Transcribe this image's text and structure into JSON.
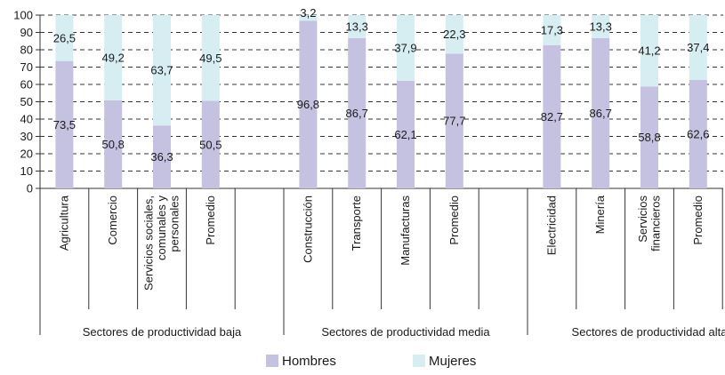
{
  "chart_data": {
    "type": "bar",
    "stacked": true,
    "ylim": [
      0,
      100
    ],
    "yticks": [
      0,
      10,
      20,
      30,
      40,
      50,
      60,
      70,
      80,
      90,
      100
    ],
    "grid": "horizontal-dashed",
    "legend_position": "bottom",
    "colors": {
      "Hombres": "#c5c1e0",
      "Mujeres": "#d6eef2"
    },
    "groups": [
      {
        "label": "Sectores de productividad baja",
        "categories": [
          {
            "label": "Agricultura",
            "lines": [
              "Agricultura"
            ],
            "hombres": 73.5,
            "mujeres": 26.5,
            "hombres_label": "73,5",
            "mujeres_label": "26,5"
          },
          {
            "label": "Comercio",
            "lines": [
              "Comercio"
            ],
            "hombres": 50.8,
            "mujeres": 49.2,
            "hombres_label": "50,8",
            "mujeres_label": "49,2"
          },
          {
            "label": "Servicios sociales, comunales y personales",
            "lines": [
              "Servicios sociales,",
              "comunales y",
              "personales"
            ],
            "hombres": 36.3,
            "mujeres": 63.7,
            "hombres_label": "36,3",
            "mujeres_label": "63,7"
          },
          {
            "label": "Promedio",
            "lines": [
              "Promedio"
            ],
            "hombres": 50.5,
            "mujeres": 49.5,
            "hombres_label": "50,5",
            "mujeres_label": "49,5"
          }
        ]
      },
      {
        "label": "Sectores de productividad media",
        "categories": [
          {
            "label": "Construcción",
            "lines": [
              "Construcción"
            ],
            "hombres": 96.8,
            "mujeres": 3.2,
            "hombres_label": "96,8",
            "mujeres_label": "3,2"
          },
          {
            "label": "Transporte",
            "lines": [
              "Transporte"
            ],
            "hombres": 86.7,
            "mujeres": 13.3,
            "hombres_label": "86,7",
            "mujeres_label": "13,3"
          },
          {
            "label": "Manufacturas",
            "lines": [
              "Manufacturas"
            ],
            "hombres": 62.1,
            "mujeres": 37.9,
            "hombres_label": "62,1",
            "mujeres_label": "37,9"
          },
          {
            "label": "Promedio",
            "lines": [
              "Promedio"
            ],
            "hombres": 77.7,
            "mujeres": 22.3,
            "hombres_label": "77,7",
            "mujeres_label": "22,3"
          }
        ]
      },
      {
        "label": "Sectores de productividad alta",
        "categories": [
          {
            "label": "Electricidad",
            "lines": [
              "Electricidad"
            ],
            "hombres": 82.7,
            "mujeres": 17.3,
            "hombres_label": "82,7",
            "mujeres_label": "17,3"
          },
          {
            "label": "Minería",
            "lines": [
              "Minería"
            ],
            "hombres": 86.7,
            "mujeres": 13.3,
            "hombres_label": "86,7",
            "mujeres_label": "13,3"
          },
          {
            "label": "Servicios financieros",
            "lines": [
              "Servicios",
              "financieros"
            ],
            "hombres": 58.8,
            "mujeres": 41.2,
            "hombres_label": "58,8",
            "mujeres_label": "41,2"
          },
          {
            "label": "Promedio",
            "lines": [
              "Promedio"
            ],
            "hombres": 62.6,
            "mujeres": 37.4,
            "hombres_label": "62,6",
            "mujeres_label": "37,4"
          }
        ]
      }
    ],
    "series": [
      {
        "name": "Hombres"
      },
      {
        "name": "Mujeres"
      }
    ]
  }
}
